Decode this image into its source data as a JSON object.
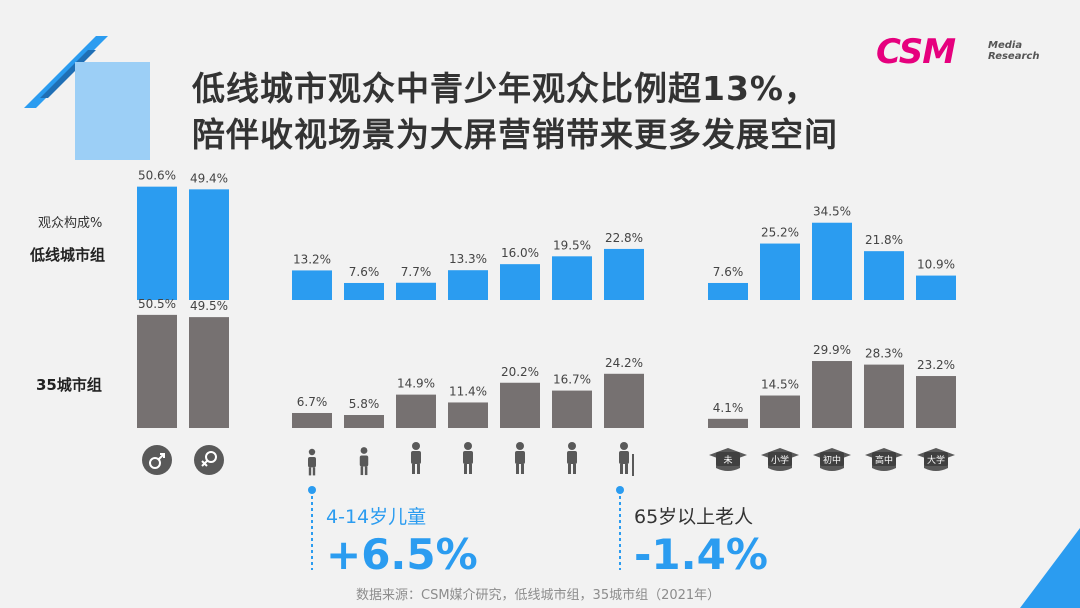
{
  "title_line1": "低线城市观众中青少年观众比例超13%，",
  "title_line2": "陪伴收视场景为大屏营销带来更多发展空间",
  "logo": {
    "brand": "CSM",
    "sub_line1": "Media",
    "sub_line2": "Research"
  },
  "row_label": "观众构成%",
  "groups": [
    "低线城市组",
    "35城市组"
  ],
  "colors": {
    "low_tier": "#2b9cf0",
    "city35": "#767171",
    "accent": "#2b9cf0"
  },
  "chart_data": [
    {
      "type": "bar",
      "panel": "gender",
      "categories": [
        "男",
        "女"
      ],
      "category_icons": [
        "male-symbol-icon",
        "female-symbol-icon"
      ],
      "series": [
        {
          "name": "低线城市组",
          "values": [
            50.6,
            49.4
          ],
          "labels": [
            "50.6%",
            "49.4%"
          ]
        },
        {
          "name": "35城市组",
          "values": [
            50.5,
            49.5
          ],
          "labels": [
            "50.5%",
            "49.5%"
          ]
        }
      ]
    },
    {
      "type": "bar",
      "panel": "age",
      "category_icons": [
        "child-icon",
        "teen-icon",
        "young-man-icon",
        "adult-man-icon",
        "adult-woman-icon",
        "middle-aged-woman-icon",
        "elderly-person-icon"
      ],
      "series": [
        {
          "name": "低线城市组",
          "values": [
            13.2,
            7.6,
            7.7,
            13.3,
            16.0,
            19.5,
            22.8
          ],
          "labels": [
            "13.2%",
            "7.6%",
            "7.7%",
            "13.3%",
            "16.0%",
            "19.5%",
            "22.8%"
          ]
        },
        {
          "name": "35城市组",
          "values": [
            6.7,
            5.8,
            14.9,
            11.4,
            20.2,
            16.7,
            24.2
          ],
          "labels": [
            "6.7%",
            "5.8%",
            "14.9%",
            "11.4%",
            "20.2%",
            "16.7%",
            "24.2%"
          ]
        }
      ]
    },
    {
      "type": "bar",
      "panel": "education",
      "categories": [
        "未",
        "小学",
        "初中",
        "高中",
        "大学"
      ],
      "category_icons": [
        "grad-cap-icon",
        "grad-cap-icon",
        "grad-cap-icon",
        "grad-cap-icon",
        "grad-cap-icon"
      ],
      "series": [
        {
          "name": "低线城市组",
          "values": [
            7.6,
            25.2,
            34.5,
            21.8,
            10.9
          ],
          "labels": [
            "7.6%",
            "25.2%",
            "34.5%",
            "21.8%",
            "10.9%"
          ]
        },
        {
          "name": "35城市组",
          "values": [
            4.1,
            14.5,
            29.9,
            28.3,
            23.2
          ],
          "labels": [
            "4.1%",
            "14.5%",
            "29.9%",
            "28.3%",
            "23.2%"
          ]
        }
      ]
    }
  ],
  "callouts": [
    {
      "label": "4-14岁儿童",
      "value": "+6.5%"
    },
    {
      "label": "65岁以上老人",
      "value": "-1.4%"
    }
  ],
  "source": "数据来源：CSM媒介研究，低线城市组，35城市组（2021年）"
}
